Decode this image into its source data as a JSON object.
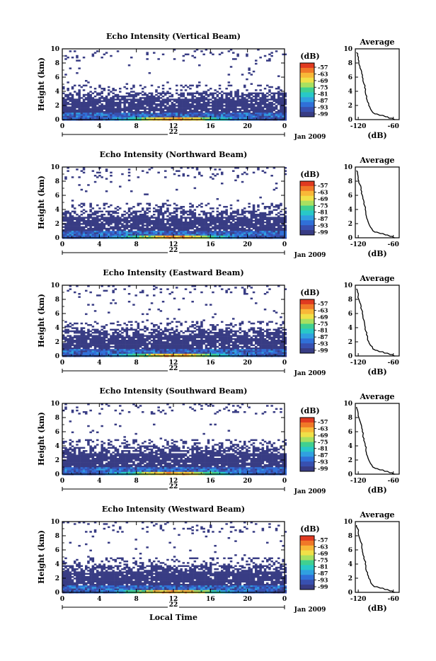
{
  "chart_data": {
    "type": "heatmap",
    "colorbar": {
      "unit": "(dB)",
      "ticks": [
        "-57",
        "-63",
        "-69",
        "-75",
        "-81",
        "-87",
        "-93",
        "-99"
      ],
      "colors": [
        "#e03a20",
        "#f07828",
        "#f8b838",
        "#f0e048",
        "#a8e060",
        "#40d090",
        "#28c8c8",
        "#30a0e0",
        "#3070d8",
        "#3850b0",
        "#383c84"
      ]
    },
    "x_ticks": [
      "0",
      "4",
      "8",
      "12",
      "16",
      "20",
      "0"
    ],
    "x_range_hours": [
      0,
      24
    ],
    "y_ticks": [
      "0",
      "2",
      "4",
      "6",
      "8",
      "10"
    ],
    "y_range_km": [
      0,
      10
    ],
    "ylabel": "Height (km)",
    "profile_title": "Average",
    "profile_xlabel": "(dB)",
    "profile_x_ticks": [
      "-120",
      "-60"
    ],
    "profile_x_range": [
      -125,
      -50
    ],
    "average_profile": {
      "height_km": [
        0,
        0.2,
        0.4,
        0.6,
        0.8,
        1.0,
        1.5,
        2.0,
        2.5,
        3.0,
        3.5,
        4.0,
        4.5,
        5.0,
        5.5,
        6.0,
        6.5,
        7.0,
        7.5,
        8.0,
        8.5,
        9.0,
        9.5
      ],
      "value_db": [
        -57,
        -62,
        -70,
        -78,
        -88,
        -95,
        -99,
        -102,
        -104,
        -106,
        -107,
        -108,
        -109,
        -110,
        -112,
        -113,
        -114,
        -115,
        -117,
        -119,
        -120,
        -121,
        -123
      ]
    },
    "panels": [
      {
        "title": "Echo Intensity (Vertical Beam)",
        "day_label": "22",
        "date_label": "Jan 2009",
        "xlabel": ""
      },
      {
        "title": "Echo Intensity (Northward Beam)",
        "day_label": "22",
        "date_label": "Jan 2009",
        "xlabel": ""
      },
      {
        "title": "Echo Intensity (Eastward Beam)",
        "day_label": "22",
        "date_label": "Jan 2009",
        "xlabel": ""
      },
      {
        "title": "Echo Intensity (Southward Beam)",
        "day_label": "22",
        "date_label": "Jan 2009",
        "xlabel": ""
      },
      {
        "title": "Echo Intensity (Westward Beam)",
        "day_label": "22",
        "date_label": "Jan 2009",
        "xlabel": "Local Time"
      }
    ]
  }
}
